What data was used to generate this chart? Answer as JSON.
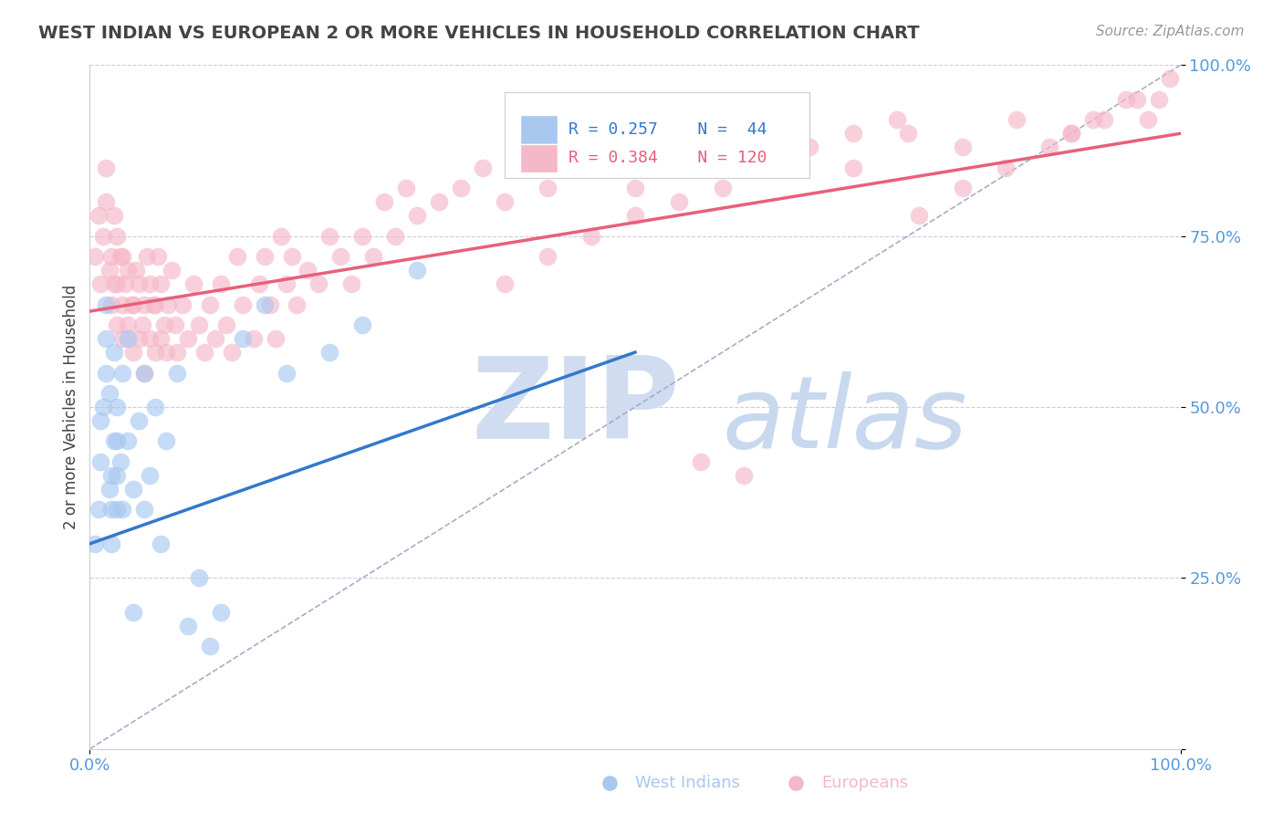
{
  "title": "WEST INDIAN VS EUROPEAN 2 OR MORE VEHICLES IN HOUSEHOLD CORRELATION CHART",
  "source": "Source: ZipAtlas.com",
  "ylabel": "2 or more Vehicles in Household",
  "xlim": [
    0,
    1
  ],
  "ylim": [
    0,
    1
  ],
  "yticks": [
    0.0,
    0.25,
    0.5,
    0.75,
    1.0
  ],
  "ytick_labels": [
    "",
    "25.0%",
    "50.0%",
    "75.0%",
    "100.0%"
  ],
  "xtick_labels": [
    "0.0%",
    "100.0%"
  ],
  "blue_color": "#A8C8F0",
  "pink_color": "#F5B8C8",
  "blue_line_color": "#3378CC",
  "pink_line_color": "#E8607A",
  "dashed_line_color": "#AAAACC",
  "watermark_zip_color": "#D0DCF0",
  "watermark_atlas_color": "#C8D8EE",
  "title_color": "#555555",
  "axis_label_color": "#5599DD",
  "wi_x": [
    0.005,
    0.008,
    0.01,
    0.01,
    0.012,
    0.015,
    0.015,
    0.015,
    0.018,
    0.018,
    0.02,
    0.02,
    0.02,
    0.022,
    0.022,
    0.025,
    0.025,
    0.025,
    0.025,
    0.028,
    0.03,
    0.03,
    0.035,
    0.035,
    0.04,
    0.04,
    0.045,
    0.05,
    0.05,
    0.055,
    0.06,
    0.065,
    0.07,
    0.08,
    0.09,
    0.1,
    0.11,
    0.12,
    0.14,
    0.16,
    0.18,
    0.22,
    0.25,
    0.3
  ],
  "wi_y": [
    0.3,
    0.35,
    0.42,
    0.48,
    0.5,
    0.55,
    0.6,
    0.65,
    0.38,
    0.52,
    0.3,
    0.35,
    0.4,
    0.45,
    0.58,
    0.35,
    0.4,
    0.45,
    0.5,
    0.42,
    0.35,
    0.55,
    0.45,
    0.6,
    0.2,
    0.38,
    0.48,
    0.35,
    0.55,
    0.4,
    0.5,
    0.3,
    0.45,
    0.55,
    0.18,
    0.25,
    0.15,
    0.2,
    0.6,
    0.65,
    0.55,
    0.58,
    0.62,
    0.7
  ],
  "eu_x": [
    0.005,
    0.008,
    0.01,
    0.012,
    0.015,
    0.015,
    0.018,
    0.02,
    0.02,
    0.022,
    0.022,
    0.025,
    0.025,
    0.025,
    0.028,
    0.03,
    0.03,
    0.03,
    0.032,
    0.035,
    0.035,
    0.038,
    0.04,
    0.04,
    0.042,
    0.045,
    0.045,
    0.048,
    0.05,
    0.05,
    0.052,
    0.055,
    0.055,
    0.058,
    0.06,
    0.06,
    0.062,
    0.065,
    0.065,
    0.068,
    0.07,
    0.072,
    0.075,
    0.078,
    0.08,
    0.085,
    0.09,
    0.095,
    0.1,
    0.105,
    0.11,
    0.115,
    0.12,
    0.125,
    0.13,
    0.135,
    0.14,
    0.15,
    0.155,
    0.16,
    0.165,
    0.17,
    0.175,
    0.18,
    0.185,
    0.19,
    0.2,
    0.21,
    0.22,
    0.23,
    0.24,
    0.25,
    0.26,
    0.27,
    0.28,
    0.29,
    0.3,
    0.32,
    0.34,
    0.36,
    0.38,
    0.4,
    0.42,
    0.45,
    0.48,
    0.5,
    0.52,
    0.55,
    0.58,
    0.6,
    0.65,
    0.7,
    0.75,
    0.8,
    0.85,
    0.9,
    0.92,
    0.95,
    0.97,
    0.99,
    0.38,
    0.42,
    0.46,
    0.5,
    0.54,
    0.58,
    0.62,
    0.66,
    0.7,
    0.74,
    0.76,
    0.8,
    0.84,
    0.88,
    0.9,
    0.93,
    0.96,
    0.98,
    0.56,
    0.6
  ],
  "eu_y": [
    0.72,
    0.78,
    0.68,
    0.75,
    0.8,
    0.85,
    0.7,
    0.65,
    0.72,
    0.68,
    0.78,
    0.62,
    0.68,
    0.75,
    0.72,
    0.6,
    0.65,
    0.72,
    0.68,
    0.62,
    0.7,
    0.65,
    0.58,
    0.65,
    0.7,
    0.6,
    0.68,
    0.62,
    0.55,
    0.65,
    0.72,
    0.6,
    0.68,
    0.65,
    0.58,
    0.65,
    0.72,
    0.6,
    0.68,
    0.62,
    0.58,
    0.65,
    0.7,
    0.62,
    0.58,
    0.65,
    0.6,
    0.68,
    0.62,
    0.58,
    0.65,
    0.6,
    0.68,
    0.62,
    0.58,
    0.72,
    0.65,
    0.6,
    0.68,
    0.72,
    0.65,
    0.6,
    0.75,
    0.68,
    0.72,
    0.65,
    0.7,
    0.68,
    0.75,
    0.72,
    0.68,
    0.75,
    0.72,
    0.8,
    0.75,
    0.82,
    0.78,
    0.8,
    0.82,
    0.85,
    0.8,
    0.85,
    0.82,
    0.88,
    0.85,
    0.82,
    0.88,
    0.9,
    0.85,
    0.92,
    0.88,
    0.85,
    0.9,
    0.88,
    0.92,
    0.9,
    0.92,
    0.95,
    0.92,
    0.98,
    0.68,
    0.72,
    0.75,
    0.78,
    0.8,
    0.82,
    0.85,
    0.88,
    0.9,
    0.92,
    0.78,
    0.82,
    0.85,
    0.88,
    0.9,
    0.92,
    0.95,
    0.95,
    0.42,
    0.4
  ],
  "blue_line_x": [
    0.0,
    0.5
  ],
  "blue_line_y": [
    0.3,
    0.58
  ],
  "pink_line_x": [
    0.0,
    1.0
  ],
  "pink_line_y": [
    0.64,
    0.9
  ],
  "dash_line_x": [
    0.0,
    1.0
  ],
  "dash_line_y": [
    0.0,
    1.0
  ]
}
